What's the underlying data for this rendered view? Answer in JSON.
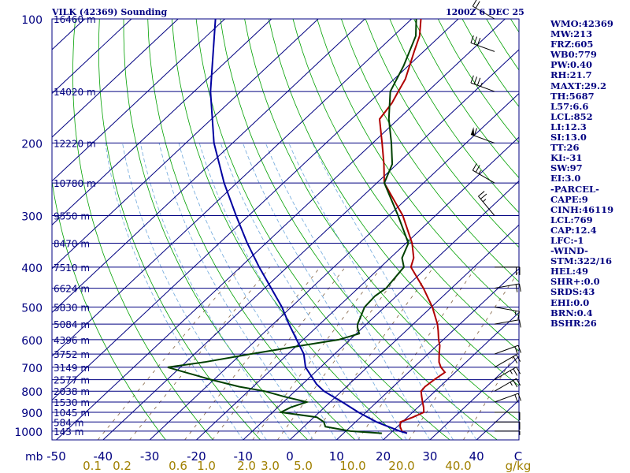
{
  "header": {
    "title": "VILK (42369) Sounding",
    "datetime": "1200Z  6 DEC 25"
  },
  "indices": [
    "WMO:42369",
    "MW:213",
    "FRZ:605",
    "WB0:779",
    "PW:0.40",
    "RH:21.7",
    "MAXT:29.2",
    "TH:5687",
    "L57:6.6",
    "LCL:852",
    "LI:12.3",
    "SI:13.0",
    "TT:26",
    "KI:-31",
    "SW:97",
    "EI:3.0",
    "-PARCEL-",
    "CAPE:9",
    "CINH:46119",
    "LCL:769",
    "CAP:12.4",
    "LFC:-1",
    "-WIND-",
    "STM:322/16",
    "HEL:49",
    "SHR+:0.0",
    "SRDS:43",
    "EHI:0.0",
    "BRN:0.4",
    "BSHR:26"
  ],
  "chart_data": {
    "type": "skew-t",
    "pressure_unit": "mb",
    "x_unit": "C",
    "mixing_ratio_unit": "g/kg",
    "pressure_ticks": [
      "100",
      "200",
      "300",
      "400",
      "500",
      "600",
      "700",
      "800",
      "900",
      "1000"
    ],
    "temperature_ticks": [
      "-50",
      "-40",
      "-30",
      "-20",
      "-10",
      "0",
      "10",
      "20",
      "30",
      "40",
      "C"
    ],
    "mixing_ratio_ticks": [
      "0.1",
      "0.2",
      "0.6",
      "1.0",
      "2.0",
      "3.0",
      "5.0",
      "10.0",
      "20.0",
      "40.0",
      "g/kg"
    ],
    "height_labels": [
      {
        "p": 100,
        "label": "16460 m"
      },
      {
        "p": 150,
        "label": "14020 m"
      },
      {
        "p": 200,
        "label": "12220 m"
      },
      {
        "p": 250,
        "label": "10780 m"
      },
      {
        "p": 300,
        "label": "9550 m"
      },
      {
        "p": 350,
        "label": "8470 m"
      },
      {
        "p": 400,
        "label": "7510 m"
      },
      {
        "p": 450,
        "label": "6624 m"
      },
      {
        "p": 500,
        "label": "5830 m"
      },
      {
        "p": 550,
        "label": "5084 m"
      },
      {
        "p": 600,
        "label": "4396 m"
      },
      {
        "p": 650,
        "label": "3752 m"
      },
      {
        "p": 700,
        "label": "3149 m"
      },
      {
        "p": 750,
        "label": "2577 m"
      },
      {
        "p": 800,
        "label": "2038 m"
      },
      {
        "p": 850,
        "label": "1530 m"
      },
      {
        "p": 900,
        "label": "1045 m"
      },
      {
        "p": 950,
        "label": "584 m"
      },
      {
        "p": 1000,
        "label": "143 m"
      }
    ],
    "series": [
      {
        "color": "#b00000",
        "points": [
          [
            1012,
            23.6
          ],
          [
            1000,
            22.0
          ],
          [
            975,
            20.6
          ],
          [
            950,
            19.6
          ],
          [
            925,
            21.2
          ],
          [
            900,
            22.4
          ],
          [
            875,
            21.2
          ],
          [
            850,
            19.8
          ],
          [
            825,
            18.4
          ],
          [
            800,
            17.0
          ],
          [
            780,
            16.8
          ],
          [
            750,
            17.2
          ],
          [
            720,
            17.8
          ],
          [
            700,
            15.8
          ],
          [
            680,
            14.2
          ],
          [
            650,
            12.4
          ],
          [
            620,
            10.6
          ],
          [
            600,
            9.0
          ],
          [
            570,
            6.8
          ],
          [
            550,
            5.2
          ],
          [
            500,
            0.2
          ],
          [
            450,
            -6.0
          ],
          [
            400,
            -13.5
          ],
          [
            380,
            -15.0
          ],
          [
            350,
            -18.7
          ],
          [
            300,
            -27.0
          ],
          [
            250,
            -38.4
          ],
          [
            225,
            -42.8
          ],
          [
            200,
            -48.0
          ],
          [
            175,
            -54.0
          ],
          [
            160,
            -55.0
          ],
          [
            150,
            -56.3
          ],
          [
            140,
            -57.6
          ],
          [
            120,
            -62.0
          ],
          [
            110,
            -64.4
          ],
          [
            100,
            -68.0
          ]
        ]
      },
      {
        "color": "#004000",
        "points": [
          [
            1012,
            18.2
          ],
          [
            1000,
            11.0
          ],
          [
            975,
            4.6
          ],
          [
            950,
            3.2
          ],
          [
            925,
            0.6
          ],
          [
            900,
            -8.2
          ],
          [
            875,
            -7.2
          ],
          [
            850,
            -5.0
          ],
          [
            825,
            -11.0
          ],
          [
            800,
            -16.5
          ],
          [
            780,
            -23.0
          ],
          [
            750,
            -30.6
          ],
          [
            720,
            -37.8
          ],
          [
            700,
            -42.7
          ],
          [
            680,
            -36.0
          ],
          [
            650,
            -28.0
          ],
          [
            620,
            -19.0
          ],
          [
            600,
            -12.4
          ],
          [
            580,
            -9.4
          ],
          [
            560,
            -11.2
          ],
          [
            550,
            -11.9
          ],
          [
            500,
            -14.3
          ],
          [
            470,
            -14.6
          ],
          [
            450,
            -14.0
          ],
          [
            400,
            -15.0
          ],
          [
            380,
            -17.5
          ],
          [
            350,
            -19.5
          ],
          [
            300,
            -28.0
          ],
          [
            250,
            -38.4
          ],
          [
            225,
            -41.0
          ],
          [
            200,
            -46.0
          ],
          [
            175,
            -52.0
          ],
          [
            150,
            -58.0
          ],
          [
            130,
            -61.0
          ],
          [
            110,
            -65.2
          ],
          [
            100,
            -69.0
          ]
        ]
      },
      {
        "color": "#0000a0",
        "points": [
          [
            1012,
            23.6
          ],
          [
            1000,
            21.6
          ],
          [
            950,
            14.5
          ],
          [
            900,
            8.4
          ],
          [
            850,
            2.6
          ],
          [
            800,
            -3.8
          ],
          [
            769,
            -7.0
          ],
          [
            700,
            -13.2
          ],
          [
            650,
            -16.6
          ],
          [
            600,
            -21.4
          ],
          [
            550,
            -26.6
          ],
          [
            500,
            -32.0
          ],
          [
            450,
            -38.6
          ],
          [
            400,
            -46.0
          ],
          [
            350,
            -54.0
          ],
          [
            300,
            -62.7
          ],
          [
            250,
            -72.7
          ],
          [
            200,
            -84.0
          ],
          [
            150,
            -96.5
          ],
          [
            100,
            -112.0
          ]
        ]
      }
    ],
    "wind_barbs": [
      {
        "p": 100,
        "dir": 300,
        "spd": 20
      },
      {
        "p": 120,
        "dir": 290,
        "spd": 30
      },
      {
        "p": 150,
        "dir": 290,
        "spd": 35
      },
      {
        "p": 200,
        "dir": 290,
        "spd": 60
      },
      {
        "p": 250,
        "dir": 300,
        "spd": 25
      },
      {
        "p": 300,
        "dir": 320,
        "spd": 25
      },
      {
        "p": 400,
        "dir": 90,
        "spd": 20
      },
      {
        "p": 450,
        "dir": 80,
        "spd": 20
      },
      {
        "p": 500,
        "dir": 100,
        "spd": 15
      },
      {
        "p": 550,
        "dir": 80,
        "spd": 10
      },
      {
        "p": 650,
        "dir": 70,
        "spd": 20
      },
      {
        "p": 700,
        "dir": 60,
        "spd": 20
      },
      {
        "p": 750,
        "dir": 60,
        "spd": 25
      },
      {
        "p": 800,
        "dir": 60,
        "spd": 25
      },
      {
        "p": 850,
        "dir": 70,
        "spd": 20
      },
      {
        "p": 900,
        "dir": 90,
        "spd": 10
      },
      {
        "p": 950,
        "dir": 90,
        "spd": 10
      },
      {
        "p": 1000,
        "dir": 90,
        "spd": 5
      }
    ]
  }
}
